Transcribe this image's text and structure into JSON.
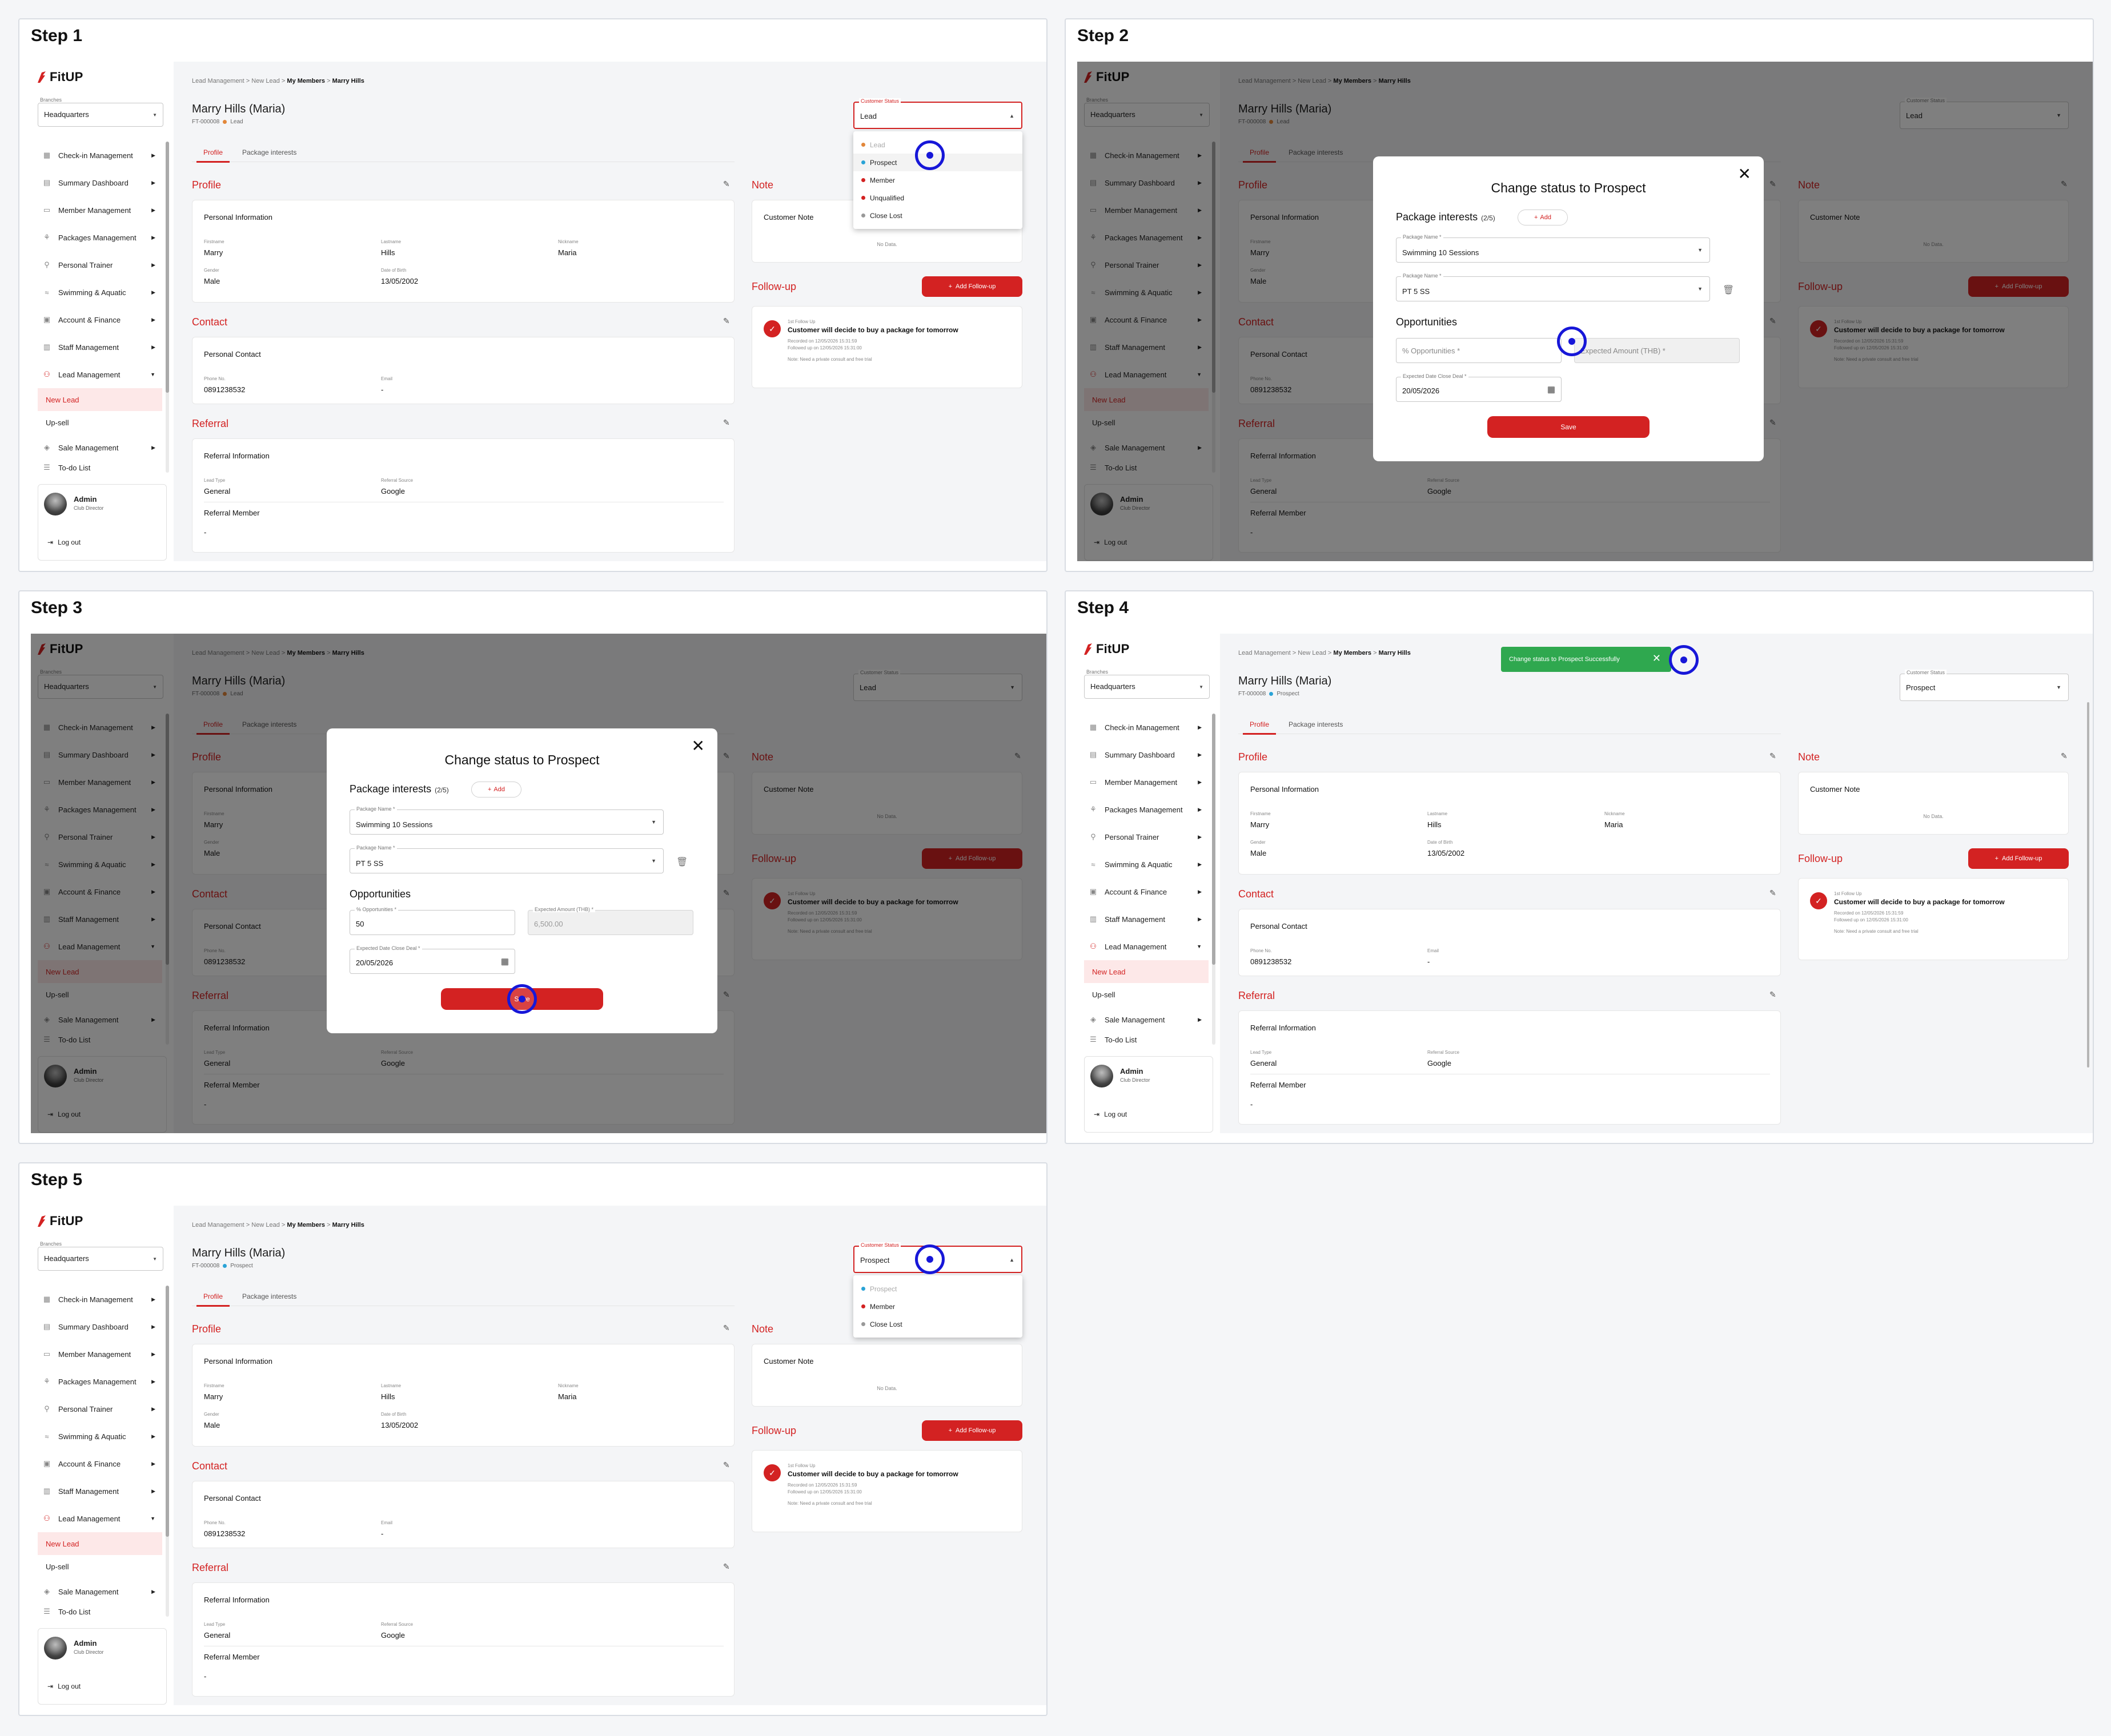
{
  "steps": [
    "Step 1",
    "Step 2",
    "Step 3",
    "Step 4",
    "Step 5"
  ],
  "app": {
    "logo": "FitUP",
    "branches_label": "Branches",
    "branch": "Headquarters",
    "nav": [
      "Check-in Management",
      "Summary Dashboard",
      "Member Management",
      "Packages Management",
      "Personal Trainer",
      "Swimming & Aquatic",
      "Account & Finance",
      "Staff Management",
      "Lead Management"
    ],
    "nav_sub": [
      "New Lead",
      "Up-sell"
    ],
    "nav_after": "Sale Management",
    "nav_cut": "To-do List",
    "user_name": "Admin",
    "user_role": "Club Director",
    "logout": "Log out",
    "crumb": [
      "Lead Management",
      "New Lead",
      "My Members",
      "Marry Hills"
    ],
    "crumb_sep": ">",
    "customer_name": "Marry Hills (Maria)",
    "customer_id": "FT-000008",
    "status_label": "Customer Status",
    "tabs": [
      "Profile",
      "Package interests"
    ],
    "profile_title": "Profile",
    "personal_info": "Personal Information",
    "firstname_l": "Firstname",
    "firstname": "Marry",
    "lastname_l": "Lastname",
    "lastname": "Hills",
    "nickname_l": "Nickname",
    "nickname": "Maria",
    "gender_l": "Gender",
    "gender": "Male",
    "dob_l": "Date of Birth",
    "dob": "13/05/2002",
    "contact_title": "Contact",
    "personal_contact": "Personal Contact",
    "phone_l": "Phone No.",
    "phone": "0891238532",
    "email_l": "Email",
    "email": "-",
    "referral_title": "Referral",
    "referral_info": "Referral Information",
    "leadtype_l": "Lead Type",
    "leadtype": "General",
    "refsource_l": "Referral Source",
    "refsource": "Google",
    "ref_member": "Referral Member",
    "ref_member_v": "-",
    "note_title": "Note",
    "customer_note": "Customer Note",
    "no_data": "No Data.",
    "followup_title": "Follow-up",
    "add_followup": "Add Follow-up",
    "fu_label": "1st Follow Up",
    "fu_title": "Customer will decide to buy a package for tomorrow",
    "fu_recorded": "Recorded on 12/05/2026 15:31:59",
    "fu_followed": "Followed up on 12/05/2026 15:31:00",
    "fu_note": "Note: Need a private consult and free trial"
  },
  "status_values": {
    "step1": "Lead",
    "step4": "Prospect",
    "step5": "Prospect"
  },
  "status_badge": {
    "lead": "Lead",
    "prospect": "Prospect"
  },
  "dropdown1": [
    "Lead",
    "Prospect",
    "Member",
    "Unqualified",
    "Close Lost"
  ],
  "dropdown5": [
    "Prospect",
    "Member",
    "Close Lost"
  ],
  "modal": {
    "title": "Change status to Prospect",
    "pkg_interests": "Package interests",
    "pkg_count": "(2/5)",
    "add": "Add",
    "pkg_label": "Package Name *",
    "pkg1": "Swimming 10 Sessions",
    "pkg2": "PT 5 SS",
    "opps": "Opportunities",
    "pct_label": "% Opportunities *",
    "pct_placeholder": "% Opportunities *",
    "pct_value": "50",
    "amt_label": "Expected Amount (THB) *",
    "amt_placeholder": "Expected Amount (THB) *",
    "amt_value": "6,500.00",
    "date_label": "Expected Date Close Deal *",
    "date": "20/05/2026",
    "save": "Save"
  },
  "toast": "Change status to Prospect Successfully",
  "colors": {
    "accent": "#d32222",
    "success": "#2fa84f",
    "click_marker": "#1717d8"
  }
}
